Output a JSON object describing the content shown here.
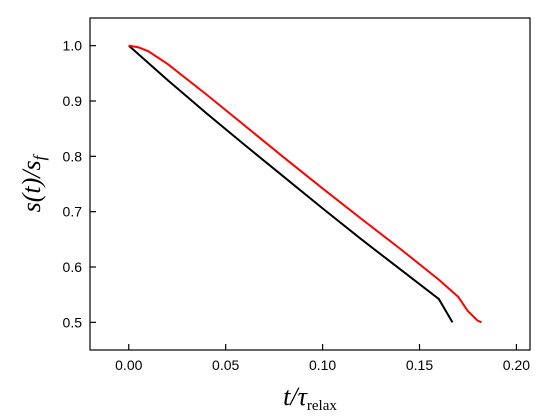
{
  "chart_data": {
    "type": "line",
    "xlabel": {
      "main": "t/τ",
      "sub": "relax"
    },
    "ylabel": {
      "main": "s(t)/s",
      "sub": "f"
    },
    "xlim": [
      -0.02,
      0.207
    ],
    "ylim": [
      0.45,
      1.05
    ],
    "xticks": [
      {
        "value": 0,
        "label": "0.00"
      },
      0.05,
      {
        "value": 0.1,
        "label": "0.10"
      },
      0.15,
      {
        "value": 0.2,
        "label": "0.20"
      }
    ],
    "yticks": [
      {
        "value": 0.5,
        "label": "0.5"
      },
      0.6,
      0.7,
      0.8,
      0.9,
      {
        "value": 1,
        "label": "1.0"
      }
    ],
    "series": [
      {
        "color": "#000000",
        "x": [
          0,
          0.02,
          0.04,
          0.06,
          0.08,
          0.1,
          0.12,
          0.14,
          0.16,
          0.167
        ],
        "values": [
          1.0,
          0.938,
          0.878,
          0.82,
          0.763,
          0.706,
          0.65,
          0.596,
          0.542,
          0.5
        ]
      },
      {
        "color": "#ff0000",
        "x": [
          0,
          0.005,
          0.01,
          0.02,
          0.04,
          0.06,
          0.08,
          0.1,
          0.12,
          0.14,
          0.16,
          0.17,
          0.175,
          0.18,
          0.182
        ],
        "values": [
          1.0,
          0.997,
          0.99,
          0.967,
          0.912,
          0.855,
          0.798,
          0.742,
          0.687,
          0.633,
          0.577,
          0.546,
          0.52,
          0.503,
          0.5
        ]
      }
    ]
  }
}
